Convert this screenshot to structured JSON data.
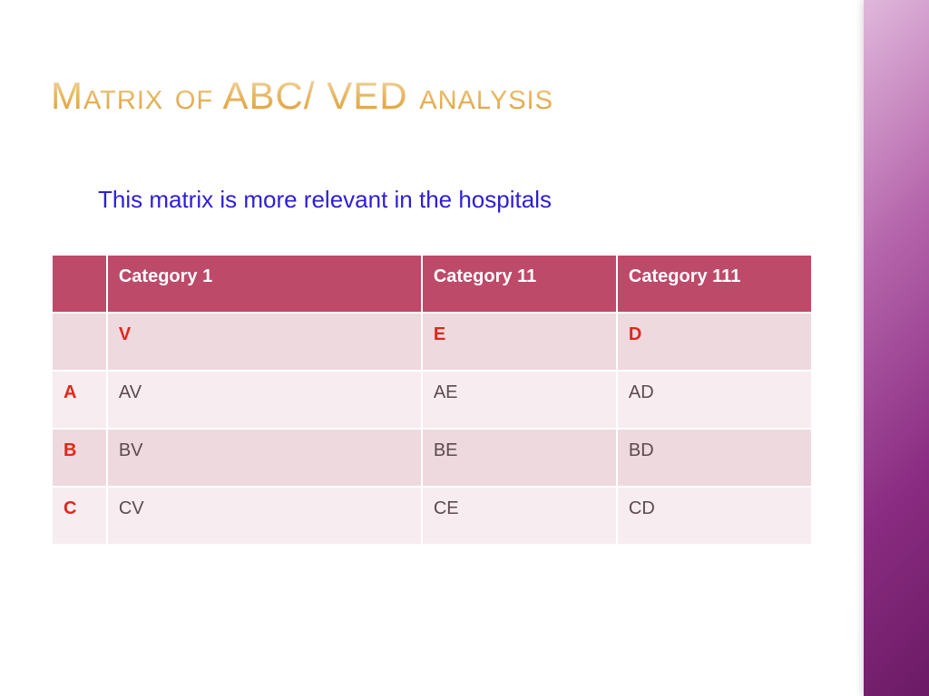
{
  "title": "Matrix of ABC/ VED analysis",
  "subtitle": "This matrix is more relevant in the hospitals",
  "subtitle_color": "#2e1ed6",
  "table": {
    "header_bg": "#bd4a69",
    "header_text_color": "#ffffff",
    "row_alt_bg_light": "#f7ecef",
    "row_alt_bg_dark": "#eed9de",
    "accent_text_color": "#e1261c",
    "data_text_color": "#5b4a4f",
    "columns": [
      "",
      "Category 1",
      "Category 11",
      "Category 111"
    ],
    "ved_row": [
      "",
      "V",
      "E",
      "D"
    ],
    "rows": [
      {
        "label": "A",
        "cells": [
          "AV",
          "AE",
          "AD"
        ]
      },
      {
        "label": "B",
        "cells": [
          "BV",
          "BE",
          "BD"
        ]
      },
      {
        "label": "C",
        "cells": [
          "CV",
          "CE",
          "CD"
        ]
      }
    ]
  },
  "side_gradient_colors": [
    "#e0b8dc",
    "#b565ab",
    "#8a2c82",
    "#6b1a64"
  ]
}
